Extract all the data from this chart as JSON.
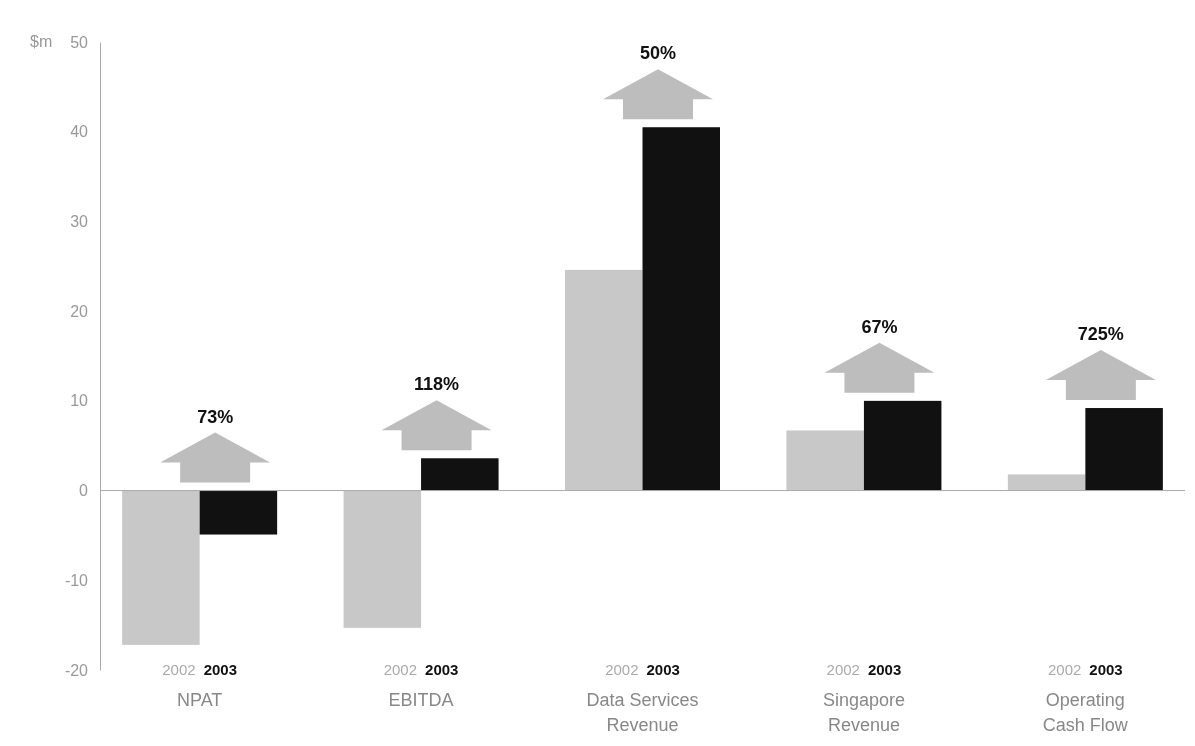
{
  "chart_data": {
    "type": "bar",
    "ylabel": "$m",
    "categories": [
      "NPAT",
      "EBITDA",
      "Data Services Revenue",
      "Singapore Revenue",
      "Operating Cash Flow"
    ],
    "series": [
      {
        "name": "2002",
        "color": "#c8c8c8",
        "values": [
          -17.2,
          -15.3,
          24.6,
          6.7,
          1.8
        ]
      },
      {
        "name": "2003",
        "color": "#111111",
        "values": [
          -4.9,
          3.6,
          40.5,
          10.0,
          9.2
        ]
      }
    ],
    "ylim": [
      -20,
      50
    ],
    "yticks": [
      -20,
      -10,
      0,
      10,
      20,
      30,
      40,
      50
    ],
    "annotations": [
      "73%",
      "118%",
      "50%",
      "67%",
      "725%"
    ]
  }
}
